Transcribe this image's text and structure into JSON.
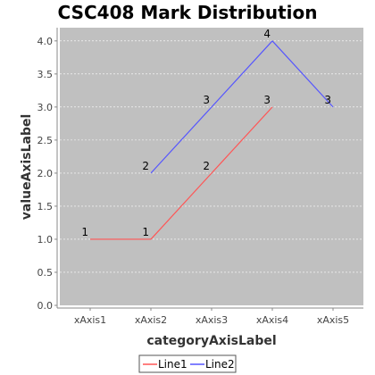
{
  "chart_data": {
    "type": "line",
    "title": "CSC408 Mark Distribution",
    "xlabel": "categoryAxisLabel",
    "ylabel": "valueAxisLabel",
    "categories": [
      "xAxis1",
      "xAxis2",
      "xAxis3",
      "xAxis4",
      "xAxis5"
    ],
    "ylim": [
      0.0,
      4.2
    ],
    "yticks": [
      "0.0",
      "0.5",
      "1.0",
      "1.5",
      "2.0",
      "2.5",
      "3.0",
      "3.5",
      "4.0"
    ],
    "grid": true,
    "legend_position": "bottom",
    "plot_background": "#c0c0c0",
    "series": [
      {
        "name": "Line1",
        "color": "#ff5555",
        "values": [
          1,
          1,
          2,
          3,
          null
        ],
        "labels": [
          "1",
          "1",
          "2",
          "3",
          ""
        ]
      },
      {
        "name": "Line2",
        "color": "#5555ff",
        "values": [
          null,
          2,
          3,
          4,
          3
        ],
        "labels": [
          "",
          "2",
          "3",
          "4",
          "3"
        ]
      }
    ]
  }
}
